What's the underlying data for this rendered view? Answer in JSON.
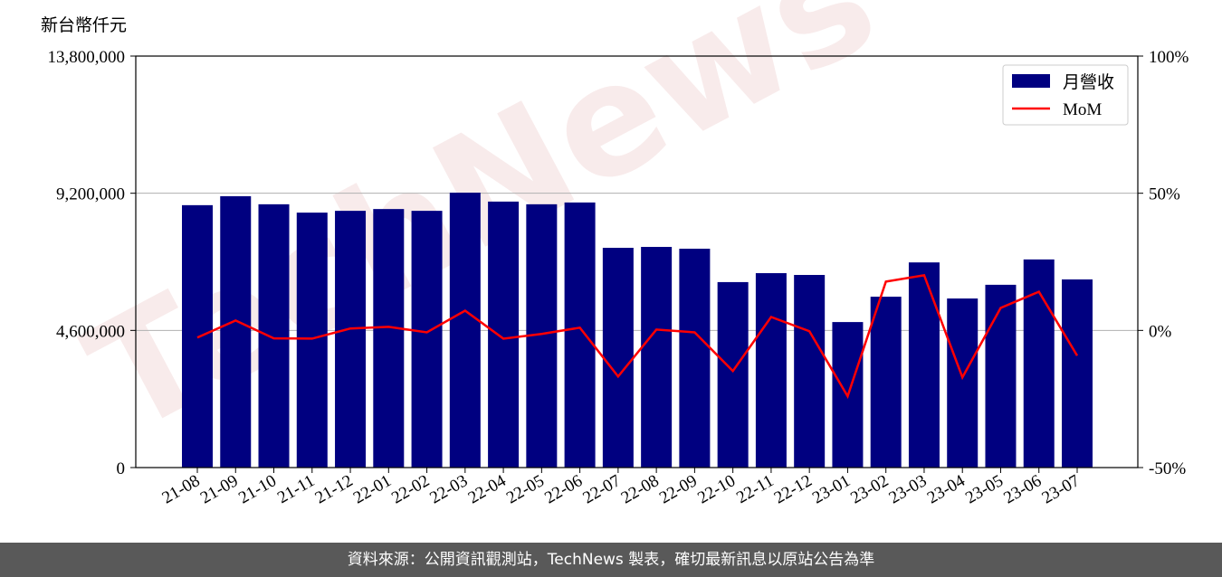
{
  "watermark": "TechNews",
  "footer": "資料來源：公開資訊觀測站，TechNews 製表，確切最新訊息以原站公告為準",
  "chart_data": {
    "type": "bar_line",
    "y_label": "新台幣仟元",
    "categories": [
      "21-08",
      "21-09",
      "21-10",
      "21-11",
      "21-12",
      "22-01",
      "22-02",
      "22-03",
      "22-04",
      "22-05",
      "22-06",
      "22-07",
      "22-08",
      "22-09",
      "22-10",
      "22-11",
      "22-12",
      "23-01",
      "23-02",
      "23-03",
      "23-04",
      "23-05",
      "23-06",
      "23-07"
    ],
    "series": [
      {
        "name": "月營收",
        "type": "bar",
        "color": "#000080",
        "values": [
          8800000,
          9100000,
          8830000,
          8550000,
          8610000,
          8670000,
          8610000,
          9220000,
          8920000,
          8830000,
          8890000,
          7370000,
          7400000,
          7340000,
          6220000,
          6520000,
          6460000,
          4880000,
          5730000,
          6880000,
          5670000,
          6130000,
          6980000,
          6310000
        ]
      },
      {
        "name": "MoM",
        "type": "line",
        "axis": "y2",
        "color": "#ff0000",
        "values": [
          -2.6,
          3.6,
          -2.9,
          -3.0,
          0.7,
          1.3,
          -0.7,
          7.2,
          -3.0,
          -1.3,
          1.0,
          -16.8,
          0.3,
          -0.7,
          -14.8,
          4.9,
          -0.3,
          -24.0,
          17.8,
          20.1,
          -17.1,
          8.2,
          14.1,
          -9.2
        ]
      }
    ],
    "ylim": [
      0,
      13800000
    ],
    "yticks": [
      0,
      {
        "value": 4600000,
        "label": "4,600,000"
      },
      {
        "value": 9200000,
        "label": "9,200,000"
      },
      {
        "value": 13800000,
        "label": "13,800,000"
      }
    ],
    "y2lim": [
      -50,
      100
    ],
    "y2ticks": [
      {
        "value": -50,
        "label": "-50%"
      },
      {
        "value": 0,
        "label": "0%"
      },
      {
        "value": 50,
        "label": "50%"
      },
      {
        "value": 100,
        "label": "100%"
      }
    ],
    "grid": true,
    "legend": "upper right"
  }
}
